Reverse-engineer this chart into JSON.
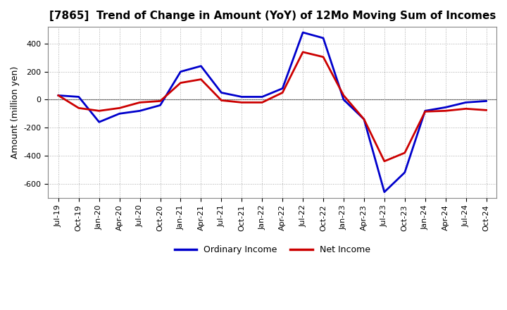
{
  "title": "[7865]  Trend of Change in Amount (YoY) of 12Mo Moving Sum of Incomes",
  "ylabel": "Amount (million yen)",
  "x_labels": [
    "Jul-19",
    "Oct-19",
    "Jan-20",
    "Apr-20",
    "Jul-20",
    "Oct-20",
    "Jan-21",
    "Apr-21",
    "Jul-21",
    "Oct-21",
    "Jan-22",
    "Apr-22",
    "Jul-22",
    "Oct-22",
    "Jan-23",
    "Apr-23",
    "Jul-23",
    "Oct-23",
    "Jan-24",
    "Apr-24",
    "Jul-24",
    "Oct-24"
  ],
  "ordinary_income": [
    30,
    20,
    -160,
    -100,
    -80,
    -40,
    200,
    240,
    50,
    20,
    20,
    80,
    480,
    440,
    0,
    -140,
    -660,
    -520,
    -80,
    -55,
    -20,
    -10
  ],
  "net_income": [
    30,
    -60,
    -80,
    -60,
    -20,
    -10,
    120,
    145,
    -5,
    -20,
    -20,
    50,
    340,
    305,
    30,
    -140,
    -440,
    -380,
    -85,
    -80,
    -65,
    -75
  ],
  "ordinary_income_color": "#0000cc",
  "net_income_color": "#cc0000",
  "ylim": [
    -700,
    520
  ],
  "yticks": [
    -600,
    -400,
    -200,
    0,
    200,
    400
  ],
  "background_color": "#ffffff",
  "grid_color": "#aaaaaa",
  "legend_labels": [
    "Ordinary Income",
    "Net Income"
  ]
}
